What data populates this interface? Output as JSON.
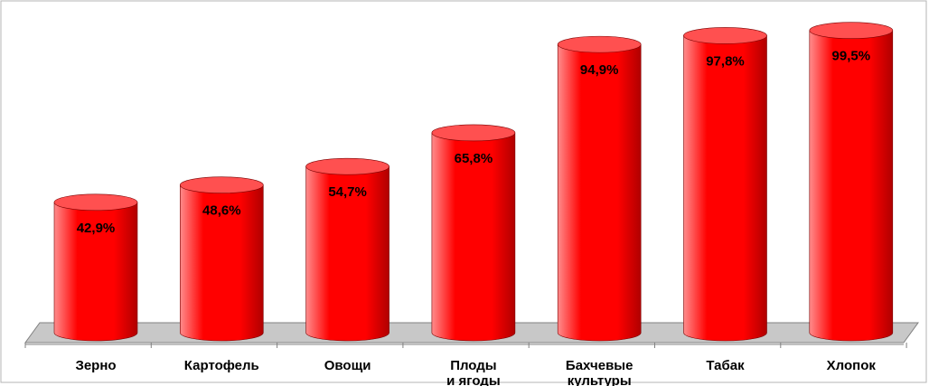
{
  "chart_data": {
    "type": "bar",
    "style": "3d-cylinder",
    "categories": [
      [
        "Зерно"
      ],
      [
        "Картофель"
      ],
      [
        "Овощи"
      ],
      [
        "Плоды",
        "и ягоды"
      ],
      [
        "Бахчевые",
        "культуры"
      ],
      [
        "Табак"
      ],
      [
        "Хлопок"
      ]
    ],
    "values": [
      42.9,
      48.6,
      54.7,
      65.8,
      94.9,
      97.8,
      99.5
    ],
    "value_labels": [
      "42,9%",
      "48,6%",
      "54,7%",
      "65,8%",
      "94,9%",
      "97,8%",
      "99,5%"
    ],
    "ylim": [
      0,
      100
    ],
    "grid": false,
    "legend": "none",
    "colors": {
      "bar_light": "#ff8c8c",
      "bar_main": "#ff0000",
      "bar_dark": "#b00000",
      "bar_top": "#ff5050",
      "floor": "#c8c8c8",
      "axis": "#808080",
      "frame": "#b4b4b4"
    }
  }
}
